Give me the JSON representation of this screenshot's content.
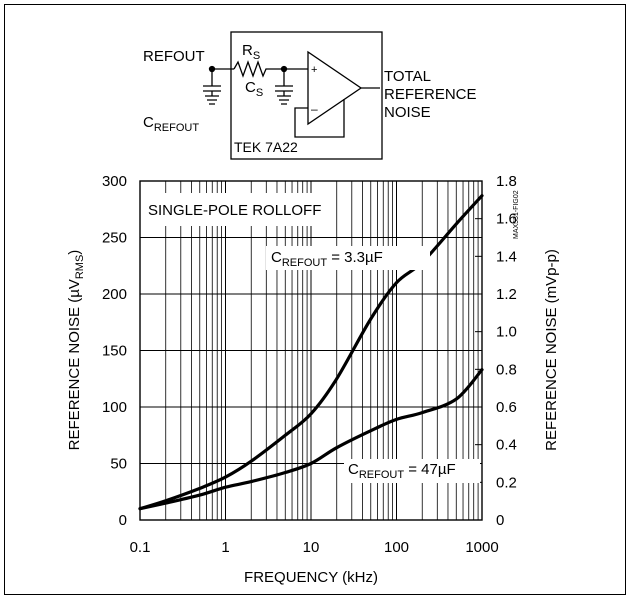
{
  "schematic": {
    "refout_label": "REFOUT",
    "rs_label": "R",
    "rs_sub": "S",
    "cs_label": "C",
    "cs_sub": "S",
    "crefout_label": "C",
    "crefout_sub": "REFOUT",
    "output_label_lines": [
      "TOTAL",
      "REFERENCE",
      "NOISE"
    ],
    "instrument_label": "TEK 7A22",
    "opamp_plus": "+",
    "opamp_minus": "–"
  },
  "chart_data": {
    "type": "line",
    "xlabel": "FREQUENCY (kHz)",
    "ylabel_left": {
      "main": "REFERENCE NOISE (µV",
      "sub": "RMS",
      "end": ")"
    },
    "ylabel_right": "REFERENCE NOISE (mVp-p)",
    "x_scale": "log",
    "xlim": [
      0.1,
      1000
    ],
    "ylim": [
      0,
      300
    ],
    "y2lim": [
      0,
      1.8
    ],
    "x_ticks": [
      0.1,
      1,
      10,
      100,
      1000
    ],
    "x_tick_labels": [
      "0.1",
      "1",
      "10",
      "100",
      "1000"
    ],
    "y_ticks": [
      0,
      50,
      100,
      150,
      200,
      250,
      300
    ],
    "y_tick_labels": [
      "0",
      "50",
      "100",
      "150",
      "200",
      "250",
      "300"
    ],
    "y2_ticks": [
      0,
      0.2,
      0.4,
      0.6,
      0.8,
      1.0,
      1.2,
      1.4,
      1.6,
      1.8
    ],
    "y2_tick_labels": [
      "0",
      "0.2",
      "0.4",
      "0.6",
      "0.8",
      "1.0",
      "1.2",
      "1.4",
      "1.6",
      "1.8"
    ],
    "grid": true,
    "annotation_box": "SINGLE-POLE ROLLOFF",
    "figure_id": "MAX531-FIG02",
    "series": [
      {
        "label_main": "C",
        "label_sub": "REFOUT",
        "label_value": " = 3.3µF",
        "x": [
          0.1,
          0.2,
          0.5,
          1,
          2,
          5,
          10,
          20,
          50,
          100,
          200,
          500,
          1000
        ],
        "y": [
          10,
          17,
          28,
          38,
          52,
          75,
          94,
          125,
          178,
          210,
          228,
          262,
          287
        ]
      },
      {
        "label_main": "C",
        "label_sub": "REFOUT",
        "label_value": " = 47µF",
        "x": [
          0.1,
          0.2,
          0.5,
          1,
          2,
          5,
          10,
          20,
          50,
          100,
          200,
          500,
          1000
        ],
        "y": [
          10,
          15,
          22,
          29,
          34,
          42,
          50,
          64,
          79,
          89,
          95,
          107,
          133
        ]
      }
    ]
  }
}
